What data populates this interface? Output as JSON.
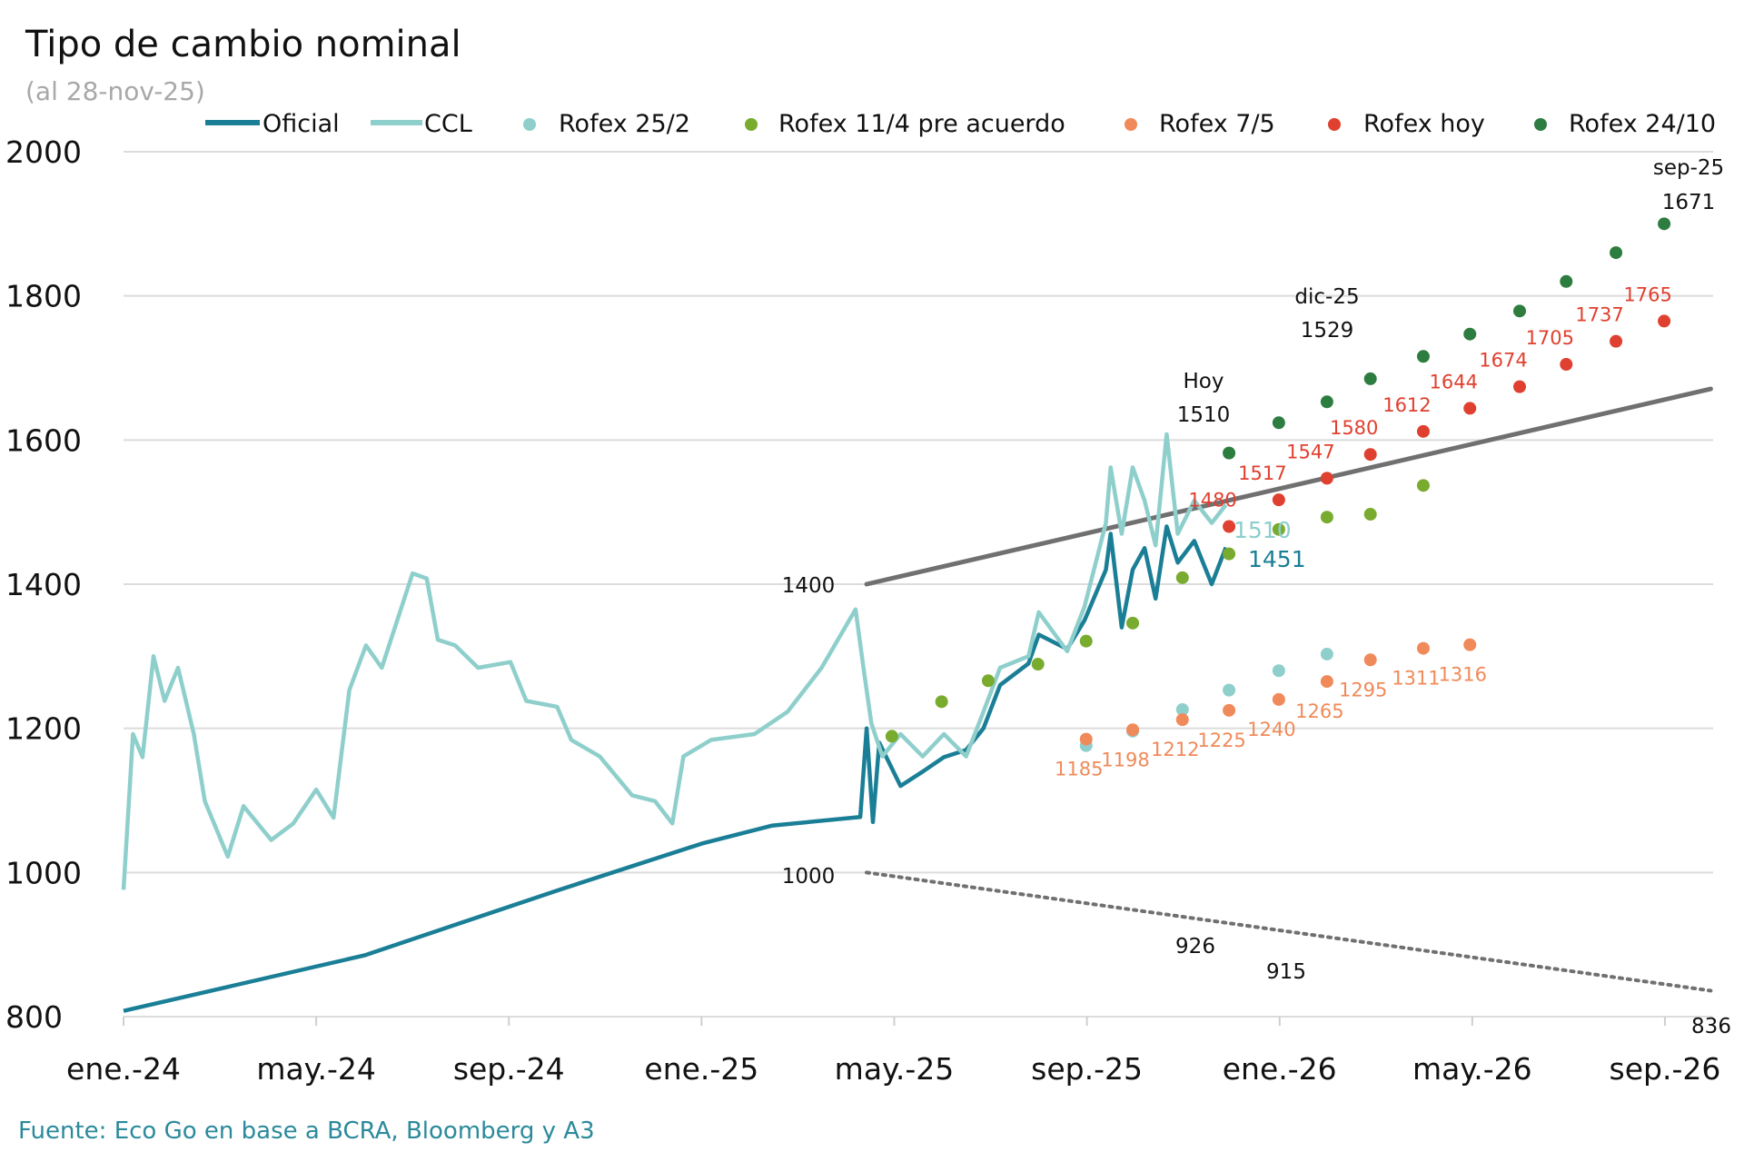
{
  "chart_data": {
    "type": "line",
    "title": "Tipo de cambio nominal",
    "subtitle": "(al 28-nov-25)",
    "source": "Fuente: Eco Go en base a BCRA, Bloomberg y A3",
    "ylim": [
      800,
      2000
    ],
    "yticks": [
      "800",
      "1000",
      "1200",
      "1400",
      "1600",
      "1800",
      "2000"
    ],
    "xlim": [
      "2024-01-01",
      "2026-09-30"
    ],
    "xticks": [
      {
        "date": "2024-01-01",
        "label": "ene.-24"
      },
      {
        "date": "2024-05-01",
        "label": "may.-24"
      },
      {
        "date": "2024-09-01",
        "label": "sep.-24"
      },
      {
        "date": "2025-01-01",
        "label": "ene.-25"
      },
      {
        "date": "2025-05-01",
        "label": "may.-25"
      },
      {
        "date": "2025-09-01",
        "label": "sep.-25"
      },
      {
        "date": "2026-01-01",
        "label": "ene.-26"
      },
      {
        "date": "2026-05-01",
        "label": "may.-26"
      },
      {
        "date": "2026-09-01",
        "label": "sep.-26"
      }
    ],
    "grid": true,
    "legend_position": "top",
    "series": [
      {
        "name": "Oficial",
        "kind": "line",
        "color": "#1a7f96",
        "x": [
          "2024-01-01",
          "2024-06-01",
          "2024-10-01",
          "2025-01-01",
          "2025-02-15",
          "2025-04-10",
          "2025-04-14",
          "2025-04-18",
          "2025-04-22",
          "2025-05-05",
          "2025-05-19",
          "2025-06-02",
          "2025-06-16",
          "2025-06-27",
          "2025-07-07",
          "2025-07-25",
          "2025-08-01",
          "2025-08-19",
          "2025-08-30",
          "2025-09-13",
          "2025-09-16",
          "2025-09-23",
          "2025-09-30",
          "2025-10-07",
          "2025-10-14",
          "2025-10-21",
          "2025-10-28",
          "2025-11-08",
          "2025-11-19",
          "2025-11-28"
        ],
        "y": [
          808,
          885,
          975,
          1040,
          1065,
          1077,
          1200,
          1070,
          1180,
          1120,
          1140,
          1160,
          1170,
          1200,
          1260,
          1290,
          1330,
          1310,
          1350,
          1420,
          1470,
          1340,
          1420,
          1450,
          1380,
          1480,
          1430,
          1460,
          1400,
          1451
        ]
      },
      {
        "name": "CCL",
        "kind": "line",
        "color": "#8ecfcc",
        "x": [
          "2024-01-01",
          "2024-01-07",
          "2024-01-13",
          "2024-01-20",
          "2024-01-27",
          "2024-02-05",
          "2024-02-15",
          "2024-02-22",
          "2024-03-06",
          "2024-03-16",
          "2024-04-03",
          "2024-04-17",
          "2024-05-01",
          "2024-05-12",
          "2024-05-22",
          "2024-06-02",
          "2024-06-12",
          "2024-07-01",
          "2024-07-10",
          "2024-07-17",
          "2024-07-28",
          "2024-08-12",
          "2024-09-02",
          "2024-09-12",
          "2024-10-01",
          "2024-10-10",
          "2024-10-28",
          "2024-11-18",
          "2024-12-02",
          "2024-12-13",
          "2024-12-20",
          "2025-01-07",
          "2025-02-04",
          "2025-02-25",
          "2025-03-16",
          "2025-04-07",
          "2025-04-12",
          "2025-04-17",
          "2025-04-24",
          "2025-05-05",
          "2025-05-19",
          "2025-06-02",
          "2025-06-16",
          "2025-06-27",
          "2025-07-07",
          "2025-07-25",
          "2025-08-01",
          "2025-08-19",
          "2025-08-30",
          "2025-09-13",
          "2025-09-16",
          "2025-09-23",
          "2025-09-30",
          "2025-10-07",
          "2025-10-14",
          "2025-10-21",
          "2025-10-28",
          "2025-11-08",
          "2025-11-19",
          "2025-11-28"
        ],
        "y": [
          976,
          1192,
          1160,
          1300,
          1238,
          1284,
          1192,
          1099,
          1022,
          1092,
          1045,
          1068,
          1115,
          1076,
          1253,
          1315,
          1284,
          1415,
          1408,
          1323,
          1315,
          1284,
          1292,
          1238,
          1230,
          1184,
          1161,
          1107,
          1099,
          1068,
          1161,
          1184,
          1192,
          1223,
          1284,
          1365,
          1284,
          1207,
          1161,
          1192,
          1161,
          1192,
          1161,
          1223,
          1284,
          1300,
          1361,
          1307,
          1369,
          1485,
          1562,
          1470,
          1562,
          1516,
          1454,
          1608,
          1470,
          1516,
          1485,
          1510
        ]
      },
      {
        "name": "Rofex 25/2",
        "kind": "scatter",
        "color": "#8ecfcc",
        "x": [
          "2025-08-31",
          "2025-09-30",
          "2025-10-31",
          "2025-11-30",
          "2025-12-31",
          "2026-01-31"
        ],
        "y": [
          1176,
          1196,
          1226,
          1253,
          1280,
          1303
        ]
      },
      {
        "name": "Rofex 11/4 pre acuerdo",
        "kind": "scatter",
        "color": "#79ab2e",
        "x": [
          "2025-04-30",
          "2025-05-31",
          "2025-06-30",
          "2025-07-31",
          "2025-08-31",
          "2025-09-30",
          "2025-10-31",
          "2025-11-30",
          "2025-12-31",
          "2026-01-31",
          "2026-02-28",
          "2026-03-31"
        ],
        "y": [
          1189,
          1237,
          1266,
          1289,
          1321,
          1346,
          1409,
          1442,
          1476,
          1493,
          1497,
          1537
        ]
      },
      {
        "name": "Rofex 7/5",
        "kind": "scatter",
        "color": "#f08a5a",
        "x": [
          "2025-08-31",
          "2025-09-30",
          "2025-10-31",
          "2025-11-30",
          "2025-12-31",
          "2026-01-31",
          "2026-02-28",
          "2026-03-31",
          "2026-04-30"
        ],
        "y": [
          1185,
          1198,
          1212,
          1225,
          1240,
          1265,
          1295,
          1311,
          1316
        ],
        "labels": [
          "1185",
          "1198",
          "1212",
          "1225",
          "1240",
          "1265",
          "1295",
          "1311",
          "1316"
        ]
      },
      {
        "name": "Rofex hoy",
        "kind": "scatter",
        "color": "#e0402f",
        "x": [
          "2025-11-30",
          "2025-12-31",
          "2026-01-31",
          "2026-02-28",
          "2026-03-31",
          "2026-04-30",
          "2026-05-31",
          "2026-06-30",
          "2026-07-31",
          "2026-08-31"
        ],
        "y": [
          1480,
          1517,
          1547,
          1580,
          1612,
          1644,
          1674,
          1705,
          1737,
          1765
        ],
        "labels": [
          "1480",
          "1517",
          "1547",
          "1580",
          "1612",
          "1644",
          "1674",
          "1705",
          "1737",
          "1765"
        ]
      },
      {
        "name": "Rofex 24/10",
        "kind": "scatter",
        "color": "#2e7d40",
        "x": [
          "2025-11-30",
          "2025-12-31",
          "2026-01-31",
          "2026-02-28",
          "2026-03-31",
          "2026-04-30",
          "2026-05-31",
          "2026-06-30",
          "2026-07-31",
          "2026-08-31"
        ],
        "y": [
          1582,
          1624,
          1653,
          1685,
          1716,
          1747,
          1779,
          1820,
          1860,
          1900
        ]
      }
    ],
    "bands": [
      {
        "kind": "upper",
        "color": "#707070",
        "x": [
          "2025-04-14",
          "2026-09-30"
        ],
        "y": [
          1400,
          1671
        ]
      },
      {
        "kind": "lower",
        "color": "#707070",
        "style": "dotted",
        "x": [
          "2025-04-14",
          "2026-09-30"
        ],
        "y": [
          1000,
          836
        ]
      }
    ],
    "annotations": {
      "band_upper_start": "1400",
      "band_lower_start": "1000",
      "band_lower_1": "926",
      "band_lower_2": "915",
      "band_lower_end": "836",
      "hoy_label": "Hoy",
      "hoy_value": "1510",
      "dic_label": "dic-25",
      "dic_value": "1529",
      "sep_label": "sep-25",
      "sep_value": "1671",
      "ccl_last": "1510",
      "oficial_last": "1451"
    }
  }
}
